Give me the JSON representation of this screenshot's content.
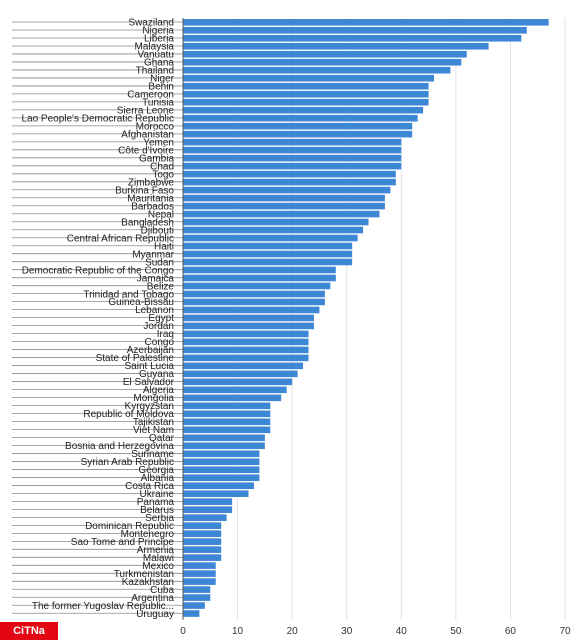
{
  "watermark": "CiTNa",
  "chart_data": {
    "type": "bar",
    "orientation": "horizontal",
    "title": "",
    "xlabel": "",
    "ylabel": "",
    "xlim": [
      0,
      70
    ],
    "x_ticks": [
      0,
      10,
      20,
      30,
      40,
      50,
      60,
      70
    ],
    "grid": true,
    "bar_color": "#3e87d6",
    "categories": [
      "Swaziland",
      "Nigeria",
      "Liberia",
      "Malaysia",
      "Vanuatu",
      "Ghana",
      "Thailand",
      "Niger",
      "Benin",
      "Cameroon",
      "Tunisia",
      "Sierra Leone",
      "Lao People's Democratic Republic",
      "Morocco",
      "Afghanistan",
      "Yemen",
      "Côte d'Ivoire",
      "Gambia",
      "Chad",
      "Togo",
      "Zimbabwe",
      "Burkina Faso",
      "Mauritania",
      "Barbados",
      "Nepal",
      "Bangladesh",
      "Djibouti",
      "Central African Republic",
      "Haiti",
      "Myanmar",
      "Sudan",
      "Democratic Republic of the Congo",
      "Jamaica",
      "Belize",
      "Trinidad and Tobago",
      "Guinea-Bissau",
      "Lebanon",
      "Egypt",
      "Jordan",
      "Iraq",
      "Congo",
      "Azerbaijan",
      "State of Palestine",
      "Saint Lucia",
      "Guyana",
      "El Salvador",
      "Algeria",
      "Mongolia",
      "Kyrgyzstan",
      "Republic of Moldova",
      "Tajikistan",
      "Viet Nam",
      "Qatar",
      "Bosnia and Herzegovina",
      "Suriname",
      "Syrian Arab Republic",
      "Georgia",
      "Albania",
      "Costa Rica",
      "Ukraine",
      "Panama",
      "Belarus",
      "Serbia",
      "Dominican Republic",
      "Montenegro",
      "Sao Tome and Principe",
      "Armenia",
      "Malawi",
      "Mexico",
      "Turkmenistan",
      "Kazakhstan",
      "Cuba",
      "Argentina",
      "The former Yugoslav Republic...",
      "Uruguay"
    ],
    "values": [
      67,
      63,
      62,
      56,
      52,
      51,
      49,
      46,
      45,
      45,
      45,
      44,
      43,
      42,
      42,
      40,
      40,
      40,
      40,
      39,
      39,
      38,
      37,
      37,
      36,
      34,
      33,
      32,
      31,
      31,
      31,
      28,
      28,
      27,
      26,
      26,
      25,
      24,
      24,
      23,
      23,
      23,
      23,
      22,
      21,
      20,
      19,
      18,
      16,
      16,
      16,
      16,
      15,
      15,
      14,
      14,
      14,
      14,
      13,
      12,
      9,
      9,
      8,
      7,
      7,
      7,
      7,
      7,
      6,
      6,
      6,
      5,
      5,
      4,
      3
    ]
  }
}
